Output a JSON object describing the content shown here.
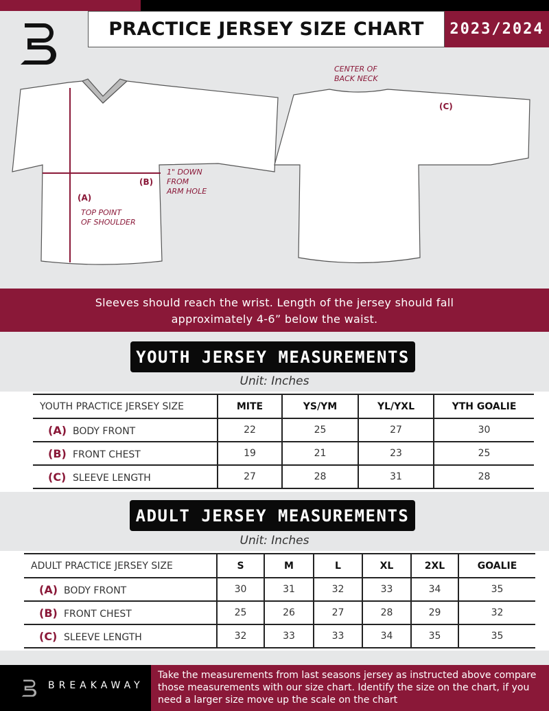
{
  "header": {
    "title": "PRACTICE JERSEY SIZE CHART",
    "season": "2023/2024"
  },
  "diagram": {
    "center_back_neck": "CENTER OF\nBACK NECK",
    "label_a": "(A)",
    "label_b": "(B)",
    "label_c": "(C)",
    "one_inch_down": "1\" DOWN\nFROM\nARM HOLE",
    "top_point": "TOP POINT\nOF SHOULDER"
  },
  "band_text_line1": "Sleeves should reach the wrist. Length of the jersey should fall",
  "band_text_line2": "approximately 4-6” below the waist.",
  "youth": {
    "title": "YOUTH JERSEY MEASUREMENTS",
    "unit": "Unit: Inches",
    "header_label": "YOUTH PRACTICE JERSEY SIZE",
    "sizes": [
      "MITE",
      "YS/YM",
      "YL/YXL",
      "YTH GOALIE"
    ],
    "rows": [
      {
        "letter": "(A)",
        "name": "BODY FRONT",
        "values": [
          "22",
          "25",
          "27",
          "30"
        ]
      },
      {
        "letter": "(B)",
        "name": "FRONT CHEST",
        "values": [
          "19",
          "21",
          "23",
          "25"
        ]
      },
      {
        "letter": "(C)",
        "name": "SLEEVE LENGTH",
        "values": [
          "27",
          "28",
          "31",
          "28"
        ]
      }
    ]
  },
  "adult": {
    "title": "ADULT JERSEY MEASUREMENTS",
    "unit": "Unit: Inches",
    "header_label": "ADULT PRACTICE JERSEY SIZE",
    "sizes": [
      "S",
      "M",
      "L",
      "XL",
      "2XL",
      "GOALIE"
    ],
    "rows": [
      {
        "letter": "(A)",
        "name": "BODY FRONT",
        "values": [
          "30",
          "31",
          "32",
          "33",
          "34",
          "35"
        ]
      },
      {
        "letter": "(B)",
        "name": "FRONT CHEST",
        "values": [
          "25",
          "26",
          "27",
          "28",
          "29",
          "32"
        ]
      },
      {
        "letter": "(C)",
        "name": "SLEEVE LENGTH",
        "values": [
          "32",
          "33",
          "33",
          "34",
          "35",
          "35"
        ]
      }
    ]
  },
  "footer": {
    "brand": "BREAKAWAY",
    "instructions": "Take the measurements from last seasons jersey as instructed above compare those measurements  with our size chart. Identify the size on the chart, if you need a larger size move up the scale on the chart"
  },
  "colors": {
    "maroon": "#8a1838",
    "black": "#000000",
    "background": "#e6e7e8"
  }
}
